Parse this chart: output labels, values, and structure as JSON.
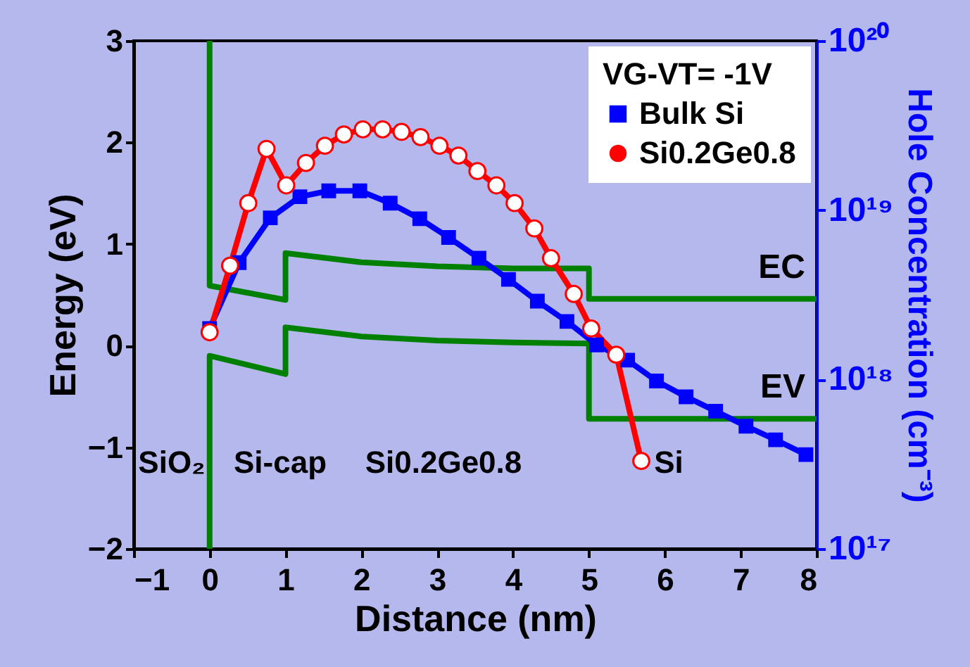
{
  "chart_data": {
    "type": "line",
    "xlabel": "Distance (nm)",
    "ylabel": "Energy (eV)",
    "y2label": "Hole Concentration (cm⁻³)",
    "legend_title": "VG-VT= -1V",
    "legend": "top right",
    "grid": false,
    "log": "y2",
    "xlim": [
      -1,
      8
    ],
    "xticks": [
      -1,
      0,
      1,
      2,
      3,
      4,
      5,
      6,
      7,
      8
    ],
    "ylim": [
      -2,
      3
    ],
    "yticks": [
      -2,
      -1,
      0,
      1,
      2,
      3
    ],
    "y2lim": [
      1e+17,
      1e+20
    ],
    "y2ticks": [
      {
        "value": 1e+17,
        "label": "10¹⁷"
      },
      {
        "value": 1e+18,
        "label": "10¹⁸"
      },
      {
        "value": 1e+19,
        "label": "10¹⁹"
      },
      {
        "value": 1e+20,
        "label": "10²⁰"
      }
    ],
    "series": [
      {
        "name": "EC",
        "color": "#008000",
        "marker": "none",
        "x": [
          0,
          0,
          1,
          1,
          2,
          3,
          4,
          5,
          5,
          8
        ],
        "values": [
          3,
          0.59,
          0.45,
          0.91,
          0.82,
          0.78,
          0.76,
          0.76,
          0.46,
          0.46
        ]
      },
      {
        "name": "EV",
        "color": "#008000",
        "marker": "none",
        "x": [
          0,
          0,
          1,
          1,
          2,
          3,
          4,
          5,
          5,
          8
        ],
        "values": [
          -2,
          -0.1,
          -0.28,
          0.18,
          0.09,
          0.05,
          0.03,
          0.02,
          -0.72,
          -0.72
        ]
      },
      {
        "name": "Bulk Si",
        "color": "#0000ff",
        "marker": "square",
        "axis": "y2",
        "x": [
          0,
          0.39,
          0.8,
          1.19,
          1.57,
          1.98,
          2.38,
          2.77,
          3.15,
          3.55,
          3.94,
          4.32,
          4.71,
          5.1,
          5.51,
          5.89,
          6.28,
          6.67,
          7.07,
          7.46,
          7.86
        ],
        "values": [
          2e+18,
          4.9e+18,
          9e+18,
          1.2e+19,
          1.3e+19,
          1.3e+19,
          1.1e+19,
          8.9e+18,
          6.9e+18,
          5.2e+18,
          3.9e+18,
          2.9e+18,
          2.2e+18,
          1.6e+18,
          1.3e+18,
          9.8e+17,
          7.9e+17,
          6.5e+17,
          5.3e+17,
          4.4e+17,
          3.6e+17
        ]
      },
      {
        "name": "Si0.2Ge0.8",
        "color": "#ff0000",
        "marker": "circle",
        "axis": "y2",
        "x": [
          0,
          0.27,
          0.51,
          0.75,
          1.01,
          1.27,
          1.52,
          1.77,
          2.02,
          2.28,
          2.53,
          2.78,
          3.03,
          3.28,
          3.53,
          3.78,
          4.02,
          4.28,
          4.5,
          4.8,
          5.03,
          5.36,
          5.69
        ],
        "values": [
          1.9e+18,
          4.7e+18,
          1.1e+19,
          2.3e+19,
          1.4e+19,
          1.9e+19,
          2.4e+19,
          2.8e+19,
          3e+19,
          3e+19,
          2.9e+19,
          2.7e+19,
          2.4e+19,
          2.1e+19,
          1.7e+19,
          1.4e+19,
          1.1e+19,
          7.8e+18,
          5.2e+18,
          3.2e+18,
          2e+18,
          1.4e+18,
          3.3e+17
        ]
      }
    ],
    "annotations": [
      "SiO₂",
      "Si-cap",
      "Si0.2Ge0.8",
      "Si"
    ]
  }
}
